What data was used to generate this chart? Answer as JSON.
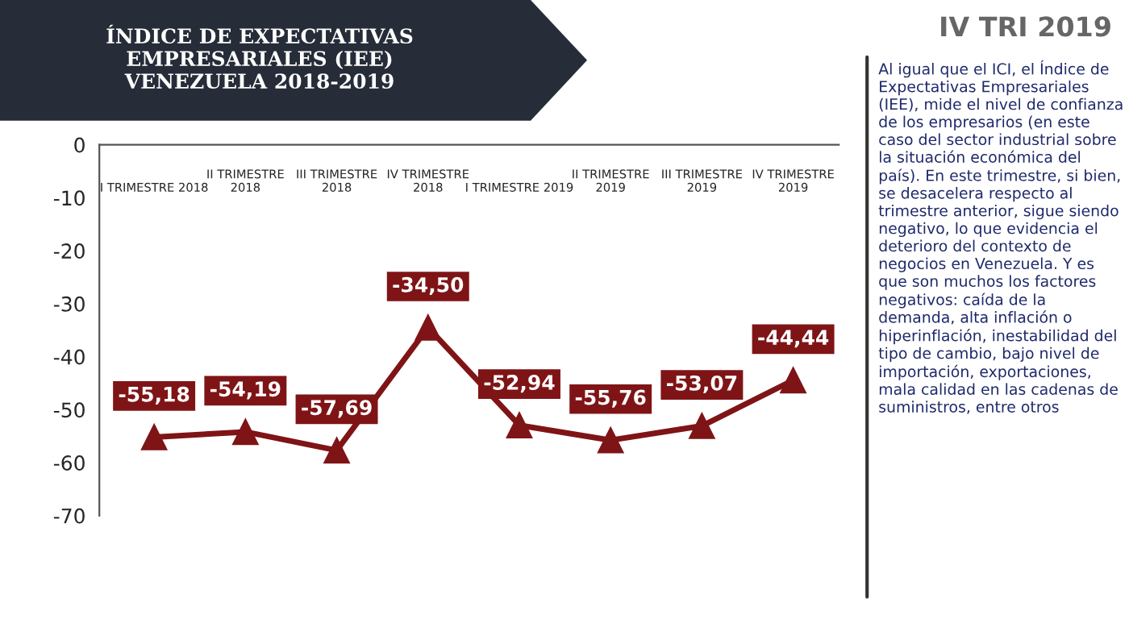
{
  "chart_data": {
    "type": "line",
    "title": "ÍNDICE DE EXPECTATIVAS\nEMPRESARIALES (IEE)\nVENEZUELA 2018-2019",
    "categories": [
      "I TRIMESTRE 2018",
      "II TRIMESTRE\n2018",
      "III TRIMESTRE\n2018",
      "IV TRIMESTRE\n2018",
      "I TRIMESTRE 2019",
      "II TRIMESTRE\n2019",
      "III TRIMESTRE\n2019",
      "IV TRIMESTRE\n2019"
    ],
    "series": [
      {
        "color": "#7f1416",
        "values": [
          -55.18,
          -54.19,
          -57.69,
          -34.5,
          -52.94,
          -55.76,
          -53.07,
          -44.44
        ],
        "value_labels": [
          "-55,18",
          "-54,19",
          "-57,69",
          "-34,50",
          "-52,94",
          "-55,76",
          "-53,07",
          "-44,44"
        ]
      }
    ],
    "ylim": [
      -70,
      0
    ],
    "yticks": [
      0,
      -10,
      -20,
      -30,
      -40,
      -50,
      -60,
      -70
    ],
    "grid": false,
    "marker": "triangle",
    "line_style": "solid",
    "annotations": [
      "IV TRI 2019",
      "Al igual que el ICI, el Índice de Expectativas Empresariales (IEE), mide el nivel de confianza de los empresarios (en este caso del sector industrial sobre la situación económica del país). En este trimestre, si bien, se desacelera respecto al trimestre anterior, sigue siendo negativo, lo que evidencia el deterioro del contexto de negocios en Venezuela. Y es que son muchos los factores negativos: caída de la demanda, alta inflación o hiperinflación, inestabilidad del tipo de cambio, bajo nivel de importación, exportaciones, mala calidad en las cadenas de suministros, entre otros"
    ]
  }
}
